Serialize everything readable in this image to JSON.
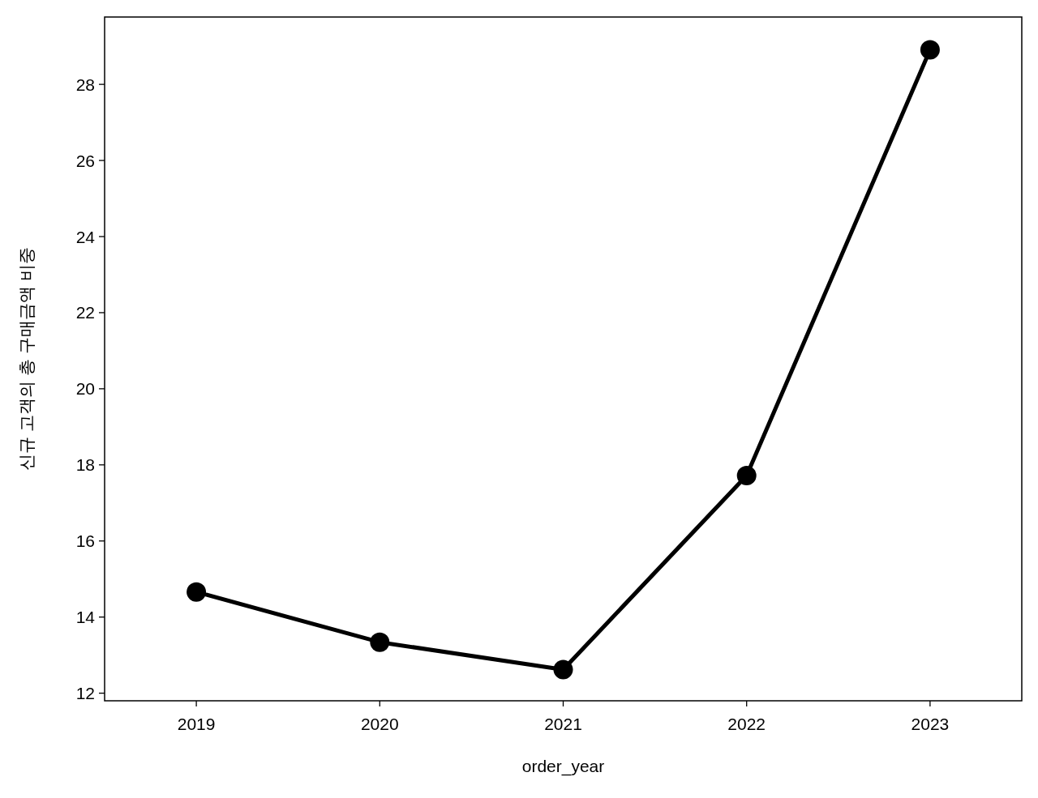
{
  "chart_data": {
    "type": "line",
    "xlabel": "order_year",
    "ylabel": "신규 고객의 총 구매금액 비중",
    "categories": [
      "2019",
      "2020",
      "2021",
      "2022",
      "2023"
    ],
    "series": [
      {
        "color": "#000000",
        "values": [
          14.66,
          13.34,
          12.62,
          17.72,
          28.91
        ]
      }
    ],
    "ylim": [
      11.8,
      29.77
    ],
    "yticks": [
      12,
      14,
      16,
      18,
      20,
      22,
      24,
      26,
      28
    ],
    "marker": "circle",
    "line_style": "solid"
  }
}
